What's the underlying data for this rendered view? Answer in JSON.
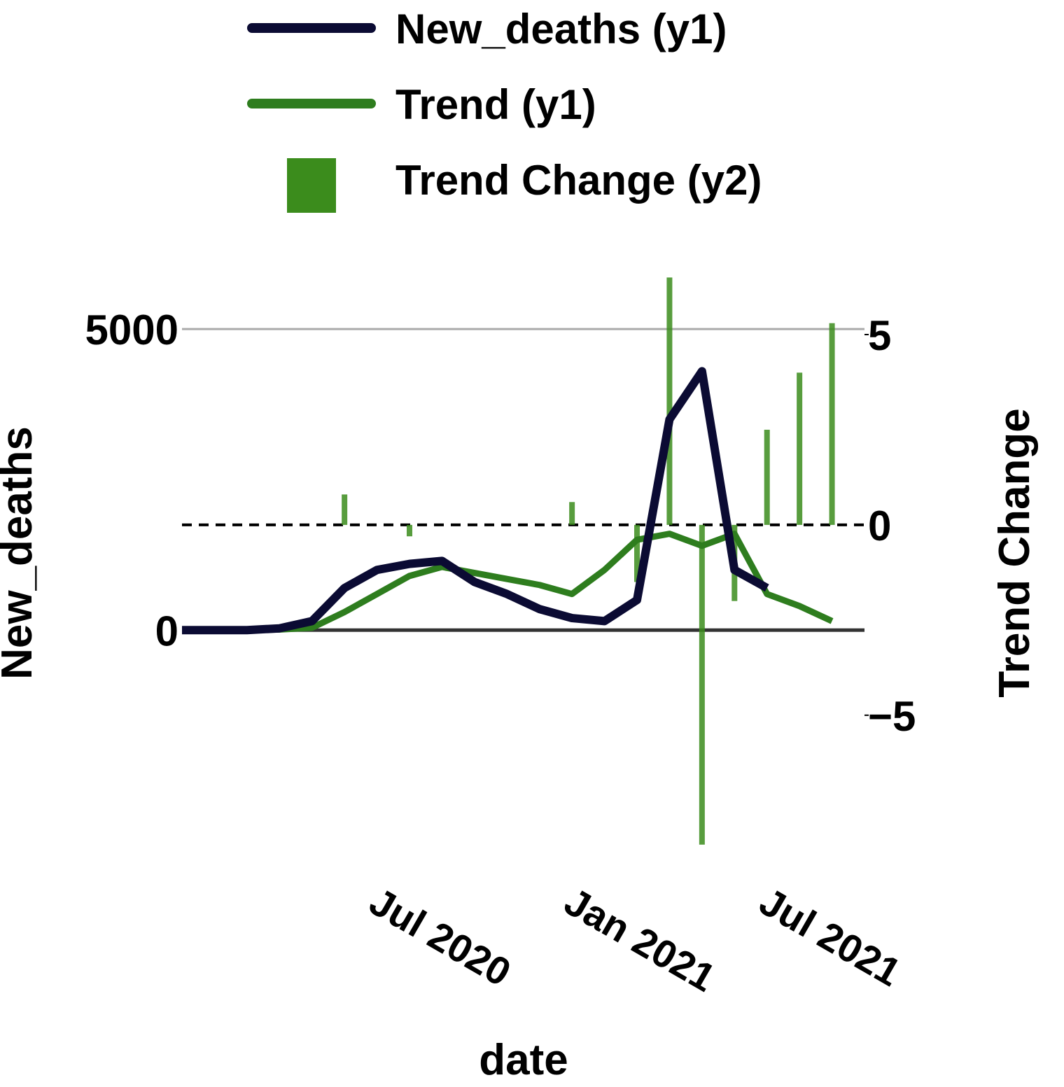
{
  "chart_data": {
    "type": "line",
    "xlabel": "date",
    "ylabel": "New_deaths",
    "y2label": "Trend Change",
    "x": [
      "2020-01",
      "2020-02",
      "2020-03",
      "2020-04",
      "2020-05",
      "2020-06",
      "2020-07",
      "2020-08",
      "2020-09",
      "2020-10",
      "2020-11",
      "2020-12",
      "2021-01",
      "2021-02",
      "2021-03",
      "2021-04",
      "2021-05",
      "2021-06",
      "2021-07",
      "2021-08",
      "2021-09",
      "2021-10"
    ],
    "xlim": [
      "2020-01",
      "2021-10"
    ],
    "xticks": [
      {
        "value": "2020-07",
        "label": "Jul 2020"
      },
      {
        "value": "2021-01",
        "label": "Jan 2021"
      },
      {
        "value": "2021-07",
        "label": "Jul 2021"
      }
    ],
    "ylim": [
      -3600,
      6280
    ],
    "yticks": [
      0,
      5000
    ],
    "y2lim": [
      -8.46,
      7.17
    ],
    "y2ticks": [
      {
        "value": -5,
        "label": "−5"
      },
      0,
      5
    ],
    "series": [
      {
        "name": "New_deaths (y1)",
        "color": "#0b0b33",
        "values": [
          0,
          0,
          0,
          30,
          150,
          700,
          1000,
          1100,
          1150,
          800,
          600,
          350,
          200,
          150,
          500,
          3500,
          4300,
          1000,
          700,
          null,
          null,
          null
        ]
      },
      {
        "name": "Trend (y1)",
        "color": "#2e7d1e",
        "values": [
          0,
          0,
          0,
          10,
          40,
          300,
          600,
          900,
          1050,
          950,
          850,
          750,
          600,
          1000,
          1500,
          1600,
          1400,
          1600,
          600,
          400,
          150,
          null
        ]
      },
      {
        "name": "Trend Change (y2)",
        "color": "#3b8c1c",
        "axis": "y2",
        "type": "bar",
        "values": [
          0,
          0,
          0,
          0,
          0,
          0.8,
          0,
          -0.3,
          0,
          0,
          0,
          0,
          0.6,
          0,
          -1.5,
          6.5,
          -8.4,
          -2,
          2.5,
          4,
          5.3,
          0
        ]
      }
    ]
  }
}
